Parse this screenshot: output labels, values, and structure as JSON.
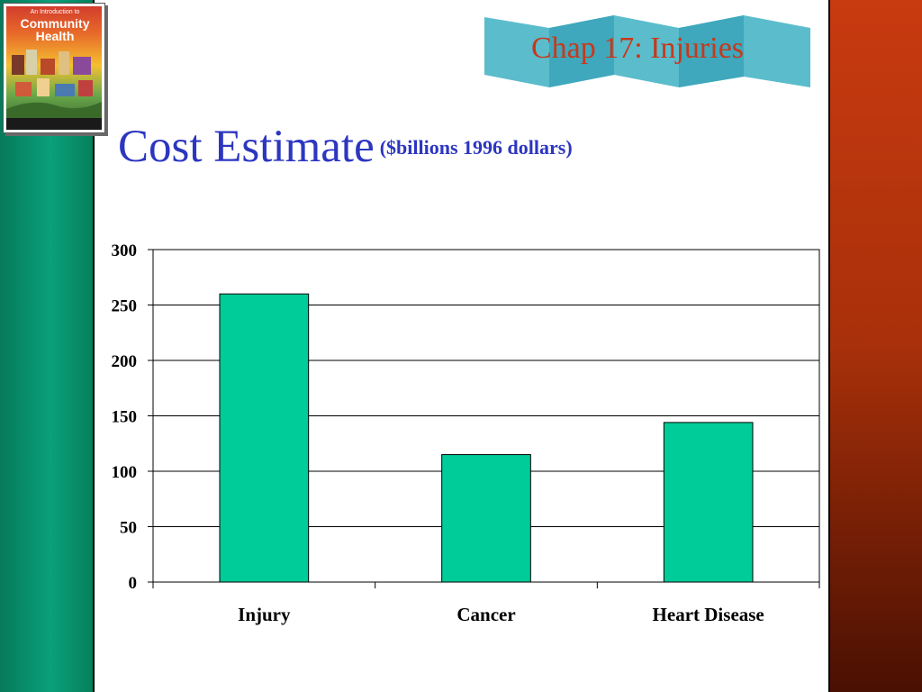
{
  "header": {
    "chapter_title": "Chap 17: Injuries",
    "title": "Cost Estimate",
    "subtitle": "($billions 1996 dollars)"
  },
  "book": {
    "line1": "An Introduction to",
    "line2": "Community",
    "line3": "Health"
  },
  "colors": {
    "bar": "#00cc99",
    "title": "#2c36c0",
    "chapter": "#c8381a",
    "banner": "#5bbccc"
  },
  "chart_data": {
    "type": "bar",
    "categories": [
      "Injury",
      "Cancer",
      "Heart Disease"
    ],
    "values": [
      260,
      115,
      144
    ],
    "title": "",
    "xlabel": "",
    "ylabel": "",
    "ylim": [
      0,
      300
    ],
    "yticks": [
      0,
      50,
      100,
      150,
      200,
      250,
      300
    ],
    "grid": true,
    "legend": "none"
  }
}
